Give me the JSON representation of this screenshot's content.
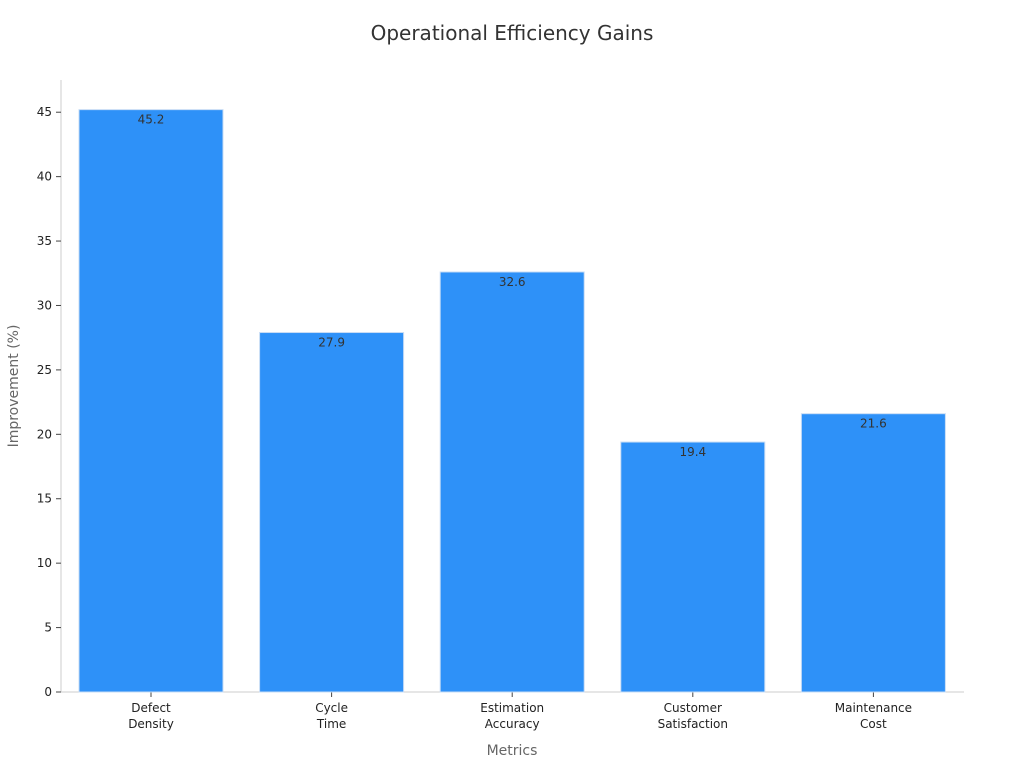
{
  "chart_data": {
    "type": "bar",
    "title": "Operational Efficiency Gains",
    "xlabel": "Metrics",
    "ylabel": "Improvement (%)",
    "categories": [
      [
        "Defect",
        "Density"
      ],
      [
        "Cycle",
        "Time"
      ],
      [
        "Estimation",
        "Accuracy"
      ],
      [
        "Customer",
        "Satisfaction"
      ],
      [
        "Maintenance",
        "Cost"
      ]
    ],
    "values": [
      45.2,
      27.9,
      32.6,
      19.4,
      21.6
    ],
    "value_labels": [
      "45.2",
      "27.9",
      "32.6",
      "19.4",
      "21.6"
    ],
    "yticks": [
      0,
      5,
      10,
      15,
      20,
      25,
      30,
      35,
      40,
      45
    ],
    "ylim": [
      0,
      47.5
    ],
    "grid": false,
    "legend": "none",
    "colors": {
      "bar": "#2e91f8",
      "axis": "#cccccc",
      "title": "#333333",
      "axis_label": "#666666",
      "tick_label": "#222222",
      "data_label": "#333333"
    }
  }
}
